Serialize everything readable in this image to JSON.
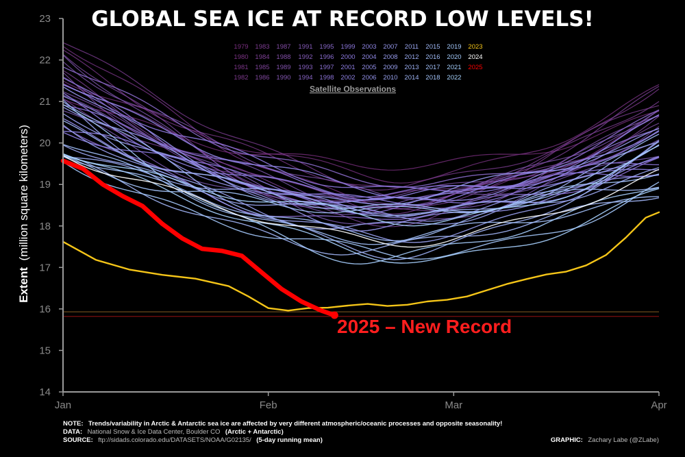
{
  "chart_data": {
    "type": "line",
    "title": "GLOBAL SEA ICE AT RECORD LOW LEVELS!",
    "ylabel_bold": "Extent",
    "ylabel_rest": "(million square kilometers)",
    "ylim": [
      14,
      23
    ],
    "yticks": [
      "14",
      "15",
      "16",
      "17",
      "18",
      "19",
      "20",
      "21",
      "22",
      "23"
    ],
    "xlim": [
      1,
      91
    ],
    "xticks": [
      {
        "day": 1,
        "label": "Jan"
      },
      {
        "day": 32,
        "label": "Feb"
      },
      {
        "day": 60,
        "label": "Mar"
      },
      {
        "day": 91,
        "label": "Apr"
      }
    ],
    "legend_title": "Satellite Observations",
    "legend_rows": [
      [
        "1979",
        "1983",
        "1987",
        "1991",
        "1995",
        "1999",
        "2003",
        "2007",
        "2011",
        "2015",
        "2019",
        "2023"
      ],
      [
        "1980",
        "1984",
        "1988",
        "1992",
        "1996",
        "2000",
        "2004",
        "2008",
        "2012",
        "2016",
        "2020",
        "2024"
      ],
      [
        "1981",
        "1985",
        "1989",
        "1993",
        "1997",
        "2001",
        "2005",
        "2009",
        "2013",
        "2017",
        "2021",
        "2025"
      ],
      [
        "1982",
        "1986",
        "1990",
        "1994",
        "1998",
        "2002",
        "2006",
        "2010",
        "2014",
        "2018",
        "2022"
      ]
    ],
    "reference_levels": [
      15.93,
      15.82
    ],
    "highlight_series": [
      {
        "name": "2023",
        "color": "#f5c518",
        "x": [
          1,
          6,
          11,
          16,
          21,
          26,
          29,
          32,
          35,
          38,
          41,
          44,
          47,
          50,
          53,
          56,
          59,
          62,
          65,
          68,
          71,
          74,
          77,
          80,
          83,
          86,
          89,
          91
        ],
        "y": [
          17.62,
          17.18,
          16.95,
          16.82,
          16.73,
          16.55,
          16.3,
          16.02,
          15.96,
          16.02,
          16.03,
          16.08,
          16.12,
          16.07,
          16.1,
          16.18,
          16.22,
          16.3,
          16.45,
          16.6,
          16.72,
          16.83,
          16.9,
          17.05,
          17.3,
          17.72,
          18.2,
          18.33
        ]
      },
      {
        "name": "2025",
        "color": "#ff0000",
        "x": [
          1,
          4,
          7,
          10,
          13,
          16,
          19,
          22,
          25,
          28,
          31,
          34,
          37,
          40,
          42
        ],
        "y": [
          19.57,
          19.38,
          19.0,
          18.72,
          18.48,
          18.05,
          17.7,
          17.45,
          17.4,
          17.28,
          16.88,
          16.48,
          16.18,
          15.96,
          15.85
        ]
      }
    ],
    "background_series_note": "Years 1979–2022 and 2024 drawn as colored lines from purple (1979) to light blue/white (2022, 2024); values generated procedurally from envelope"
  },
  "annotation": "2025 – New Record",
  "footer": {
    "note_label": "NOTE:",
    "note_text": "Trends/variability in Arctic & Antarctic sea ice are affected by very different atmospheric/oceanic processes and opposite seasonality!",
    "data_label": "DATA:",
    "data_text": "National Snow & Ice Data Center, Boulder CO",
    "data_extra": "(Arctic + Antarctic)",
    "source_label": "SOURCE:",
    "source_text": "ftp://sidads.colorado.edu/DATASETS/NOAA/G02135/",
    "source_extra": "(5-day running mean)",
    "graphic_label": "GRAPHIC:",
    "graphic_text": "Zachary Labe (@ZLabe)"
  },
  "colors": {
    "old_years": "#7a2f80",
    "mid_years": "#8c7be0",
    "recent_years": "#a8d4ff",
    "year_2023": "#f5c518",
    "year_2024": "#ffffff",
    "year_2025": "#ff0000",
    "ref_line_1": "#6b4a1a",
    "ref_line_2": "#8a1010"
  }
}
